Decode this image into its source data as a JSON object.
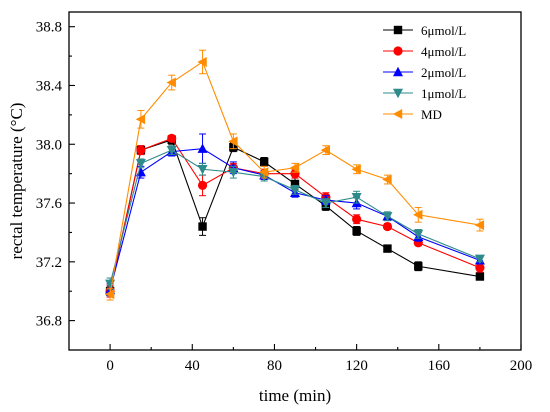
{
  "chart_data": {
    "type": "line",
    "xlabel": "time (min)",
    "ylabel": "rectal temperature (°C)",
    "xlim": [
      -20,
      200
    ],
    "ylim": [
      36.6,
      38.9
    ],
    "x": [
      0,
      15,
      30,
      45,
      60,
      75,
      90,
      105,
      120,
      135,
      150,
      180
    ],
    "x_ticks": [
      0,
      40,
      80,
      120,
      160,
      200
    ],
    "x_tick_labels": [
      "0",
      "40",
      "80",
      "120",
      "160",
      "200"
    ],
    "y_ticks": [
      36.8,
      37.2,
      37.6,
      38.0,
      38.4,
      38.8
    ],
    "y_tick_labels": [
      "36.8",
      "37.2",
      "37.6",
      "38.0",
      "38.4",
      "38.8"
    ],
    "legend_position": "top-right",
    "series": [
      {
        "name": "6μmol/L",
        "color": "#000000",
        "marker": "square",
        "values": [
          37.0,
          37.96,
          38.03,
          37.44,
          37.98,
          37.88,
          37.73,
          37.58,
          37.41,
          37.29,
          37.17,
          37.1
        ],
        "errors": [
          0.03,
          0.03,
          0.03,
          0.06,
          0.03,
          0.03,
          0.04,
          0.03,
          0.03,
          0.02,
          0.03,
          0.02
        ]
      },
      {
        "name": "4μmol/L",
        "color": "#ff0000",
        "marker": "circle",
        "values": [
          37.0,
          37.96,
          38.04,
          37.72,
          37.84,
          37.8,
          37.8,
          37.64,
          37.49,
          37.44,
          37.33,
          37.16
        ],
        "errors": [
          0.04,
          0.03,
          0.02,
          0.07,
          0.03,
          0.03,
          0.03,
          0.03,
          0.03,
          0.02,
          0.02,
          0.03
        ]
      },
      {
        "name": "2μmol/L",
        "color": "#0000ff",
        "marker": "triangle-up",
        "values": [
          37.01,
          37.81,
          37.95,
          37.97,
          37.84,
          37.79,
          37.67,
          37.62,
          37.6,
          37.51,
          37.37,
          37.21
        ],
        "errors": [
          0.04,
          0.04,
          0.03,
          0.1,
          0.04,
          0.03,
          0.03,
          0.03,
          0.04,
          0.02,
          0.03,
          0.02
        ]
      },
      {
        "name": "1μmol/L",
        "color": "#2e8b8b",
        "marker": "triangle-down",
        "values": [
          37.05,
          37.87,
          37.96,
          37.83,
          37.81,
          37.78,
          37.69,
          37.6,
          37.64,
          37.51,
          37.39,
          37.22
        ],
        "errors": [
          0.04,
          0.03,
          0.03,
          0.04,
          0.04,
          0.03,
          0.03,
          0.03,
          0.04,
          0.03,
          0.03,
          0.02
        ]
      },
      {
        "name": "MD",
        "color": "#ff8c00",
        "marker": "triangle-left",
        "values": [
          36.98,
          38.17,
          38.42,
          38.56,
          38.02,
          37.81,
          37.84,
          37.96,
          37.83,
          37.76,
          37.52,
          37.45
        ],
        "errors": [
          0.04,
          0.06,
          0.05,
          0.08,
          0.05,
          0.04,
          0.03,
          0.03,
          0.03,
          0.03,
          0.05,
          0.04
        ]
      }
    ]
  }
}
